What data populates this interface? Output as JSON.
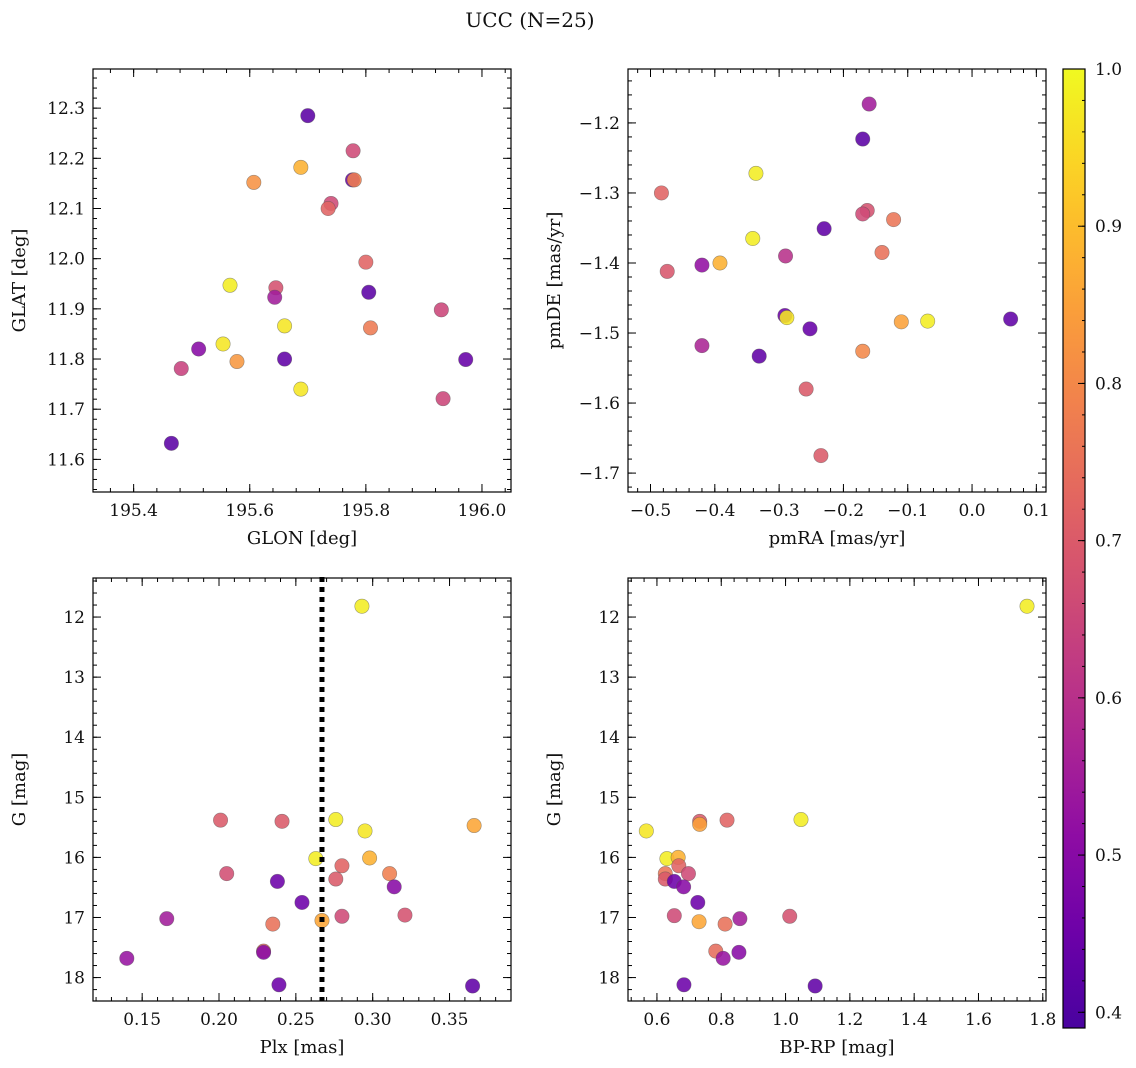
{
  "figure": {
    "title": "UCC (N=25)",
    "colorbar": {
      "range": [
        0.39,
        1.0
      ],
      "ticks": [
        0.4,
        0.5,
        0.6,
        0.7,
        0.8,
        0.9,
        1.0
      ],
      "tick_labels": [
        "0.4",
        "0.5",
        "0.6",
        "0.7",
        "0.8",
        "0.9",
        "1.0"
      ],
      "colormap": "plasma"
    }
  },
  "chart_data": [
    {
      "type": "scatter",
      "xlabel": "GLON [deg]",
      "ylabel": "GLAT [deg]",
      "xlim": [
        195.33,
        196.05
      ],
      "ylim": [
        11.535,
        12.378
      ],
      "xticks": [
        195.4,
        195.6,
        195.8,
        196.0
      ],
      "xtick_labels": [
        "195.4",
        "195.6",
        "195.8",
        "196.0"
      ],
      "yticks": [
        11.6,
        11.7,
        11.8,
        11.9,
        12.0,
        12.1,
        12.2,
        12.3
      ],
      "ytick_labels": [
        "11.6",
        "11.7",
        "11.8",
        "11.9",
        "12.0",
        "12.1",
        "12.2",
        "12.3"
      ],
      "points": [
        {
          "x": 195.7,
          "y": 12.285,
          "c": 0.42
        },
        {
          "x": 195.778,
          "y": 12.215,
          "c": 0.66
        },
        {
          "x": 195.688,
          "y": 12.182,
          "c": 0.88
        },
        {
          "x": 195.777,
          "y": 12.157,
          "c": 0.45
        },
        {
          "x": 195.78,
          "y": 12.157,
          "c": 0.78
        },
        {
          "x": 195.607,
          "y": 12.152,
          "c": 0.82
        },
        {
          "x": 195.74,
          "y": 12.11,
          "c": 0.66
        },
        {
          "x": 195.735,
          "y": 12.1,
          "c": 0.72
        },
        {
          "x": 195.8,
          "y": 11.993,
          "c": 0.72
        },
        {
          "x": 195.566,
          "y": 11.947,
          "c": 0.98
        },
        {
          "x": 195.645,
          "y": 11.942,
          "c": 0.68
        },
        {
          "x": 195.805,
          "y": 11.933,
          "c": 0.42
        },
        {
          "x": 195.643,
          "y": 11.923,
          "c": 0.55
        },
        {
          "x": 195.93,
          "y": 11.898,
          "c": 0.65
        },
        {
          "x": 195.66,
          "y": 11.866,
          "c": 0.97
        },
        {
          "x": 195.808,
          "y": 11.862,
          "c": 0.77
        },
        {
          "x": 195.554,
          "y": 11.83,
          "c": 0.97
        },
        {
          "x": 195.512,
          "y": 11.82,
          "c": 0.5
        },
        {
          "x": 195.66,
          "y": 11.8,
          "c": 0.43
        },
        {
          "x": 195.972,
          "y": 11.799,
          "c": 0.44
        },
        {
          "x": 195.578,
          "y": 11.795,
          "c": 0.83
        },
        {
          "x": 195.482,
          "y": 11.781,
          "c": 0.64
        },
        {
          "x": 195.688,
          "y": 11.74,
          "c": 0.97
        },
        {
          "x": 195.933,
          "y": 11.721,
          "c": 0.65
        },
        {
          "x": 195.465,
          "y": 11.632,
          "c": 0.42
        }
      ]
    },
    {
      "type": "scatter",
      "xlabel": "pmRA [mas/yr]",
      "ylabel": "pmDE [mas/yr]",
      "xlim": [
        -0.535,
        0.115
      ],
      "ylim": [
        -1.727,
        -1.123
      ],
      "xticks": [
        -0.5,
        -0.4,
        -0.3,
        -0.2,
        -0.1,
        0.0,
        0.1
      ],
      "xtick_labels": [
        "−0.5",
        "−0.4",
        "−0.3",
        "−0.2",
        "−0.1",
        "0.0",
        "0.1"
      ],
      "yticks": [
        -1.2,
        -1.3,
        -1.4,
        -1.5,
        -1.6,
        -1.7
      ],
      "ytick_labels": [
        "−1.2",
        "−1.3",
        "−1.4",
        "−1.5",
        "−1.6",
        "−1.7"
      ],
      "points": [
        {
          "x": -0.16,
          "y": -1.173,
          "c": 0.55
        },
        {
          "x": -0.17,
          "y": -1.223,
          "c": 0.42
        },
        {
          "x": -0.336,
          "y": -1.272,
          "c": 0.98
        },
        {
          "x": -0.483,
          "y": -1.3,
          "c": 0.72
        },
        {
          "x": -0.163,
          "y": -1.325,
          "c": 0.68
        },
        {
          "x": -0.17,
          "y": -1.33,
          "c": 0.66
        },
        {
          "x": -0.122,
          "y": -1.338,
          "c": 0.76
        },
        {
          "x": -0.23,
          "y": -1.351,
          "c": 0.43
        },
        {
          "x": -0.341,
          "y": -1.365,
          "c": 0.98
        },
        {
          "x": -0.14,
          "y": -1.385,
          "c": 0.75
        },
        {
          "x": -0.29,
          "y": -1.39,
          "c": 0.6
        },
        {
          "x": -0.392,
          "y": -1.4,
          "c": 0.88
        },
        {
          "x": -0.42,
          "y": -1.403,
          "c": 0.52
        },
        {
          "x": -0.474,
          "y": -1.412,
          "c": 0.69
        },
        {
          "x": -0.291,
          "y": -1.475,
          "c": 0.45
        },
        {
          "x": 0.06,
          "y": -1.48,
          "c": 0.43
        },
        {
          "x": -0.288,
          "y": -1.478,
          "c": 0.97
        },
        {
          "x": -0.069,
          "y": -1.483,
          "c": 0.98
        },
        {
          "x": -0.11,
          "y": -1.484,
          "c": 0.85
        },
        {
          "x": -0.252,
          "y": -1.494,
          "c": 0.44
        },
        {
          "x": -0.42,
          "y": -1.518,
          "c": 0.57
        },
        {
          "x": -0.17,
          "y": -1.526,
          "c": 0.8
        },
        {
          "x": -0.331,
          "y": -1.533,
          "c": 0.43
        },
        {
          "x": -0.258,
          "y": -1.58,
          "c": 0.7
        },
        {
          "x": -0.235,
          "y": -1.675,
          "c": 0.7
        }
      ]
    },
    {
      "type": "scatter",
      "xlabel": "Plx [mas]",
      "ylabel": "G [mag]",
      "xlim": [
        0.118,
        0.39
      ],
      "ylim": [
        18.39,
        11.35
      ],
      "y_inverted": true,
      "xticks": [
        0.15,
        0.2,
        0.25,
        0.3,
        0.35
      ],
      "xtick_labels": [
        "0.15",
        "0.20",
        "0.25",
        "0.30",
        "0.35"
      ],
      "yticks": [
        12,
        13,
        14,
        15,
        16,
        17,
        18
      ],
      "ytick_labels": [
        "12",
        "13",
        "14",
        "15",
        "16",
        "17",
        "18"
      ],
      "vline": {
        "x": 0.267,
        "style": "dotted"
      },
      "points": [
        {
          "x": 0.293,
          "y": 11.82,
          "c": 0.98
        },
        {
          "x": 0.201,
          "y": 15.38,
          "c": 0.7
        },
        {
          "x": 0.241,
          "y": 15.4,
          "c": 0.7
        },
        {
          "x": 0.276,
          "y": 15.37,
          "c": 0.98
        },
        {
          "x": 0.366,
          "y": 15.47,
          "c": 0.86
        },
        {
          "x": 0.295,
          "y": 15.56,
          "c": 0.97
        },
        {
          "x": 0.263,
          "y": 16.02,
          "c": 0.98
        },
        {
          "x": 0.298,
          "y": 16.01,
          "c": 0.88
        },
        {
          "x": 0.28,
          "y": 16.14,
          "c": 0.72
        },
        {
          "x": 0.205,
          "y": 16.27,
          "c": 0.67
        },
        {
          "x": 0.311,
          "y": 16.27,
          "c": 0.78
        },
        {
          "x": 0.276,
          "y": 16.36,
          "c": 0.7
        },
        {
          "x": 0.238,
          "y": 16.4,
          "c": 0.45
        },
        {
          "x": 0.314,
          "y": 16.49,
          "c": 0.5
        },
        {
          "x": 0.254,
          "y": 16.75,
          "c": 0.45
        },
        {
          "x": 0.28,
          "y": 16.98,
          "c": 0.66
        },
        {
          "x": 0.321,
          "y": 16.96,
          "c": 0.68
        },
        {
          "x": 0.166,
          "y": 17.02,
          "c": 0.55
        },
        {
          "x": 0.267,
          "y": 17.05,
          "c": 0.86
        },
        {
          "x": 0.235,
          "y": 17.11,
          "c": 0.75
        },
        {
          "x": 0.229,
          "y": 17.56,
          "c": 0.74
        },
        {
          "x": 0.229,
          "y": 17.58,
          "c": 0.5
        },
        {
          "x": 0.14,
          "y": 17.68,
          "c": 0.53
        },
        {
          "x": 0.239,
          "y": 18.12,
          "c": 0.45
        },
        {
          "x": 0.365,
          "y": 18.14,
          "c": 0.43
        }
      ]
    },
    {
      "type": "scatter",
      "xlabel": "BP-RP [mag]",
      "ylabel": "G [mag]",
      "xlim": [
        0.51,
        1.81
      ],
      "ylim": [
        18.39,
        11.35
      ],
      "y_inverted": true,
      "xticks": [
        0.6,
        0.8,
        1.0,
        1.2,
        1.4,
        1.6,
        1.8
      ],
      "xtick_labels": [
        "0.6",
        "0.8",
        "1.0",
        "1.2",
        "1.4",
        "1.6",
        "1.8"
      ],
      "yticks": [
        12,
        13,
        14,
        15,
        16,
        17,
        18
      ],
      "ytick_labels": [
        "12",
        "13",
        "14",
        "15",
        "16",
        "17",
        "18"
      ],
      "points": [
        {
          "x": 1.751,
          "y": 11.82,
          "c": 0.98
        },
        {
          "x": 0.567,
          "y": 15.56,
          "c": 0.97
        },
        {
          "x": 0.733,
          "y": 15.4,
          "c": 0.7
        },
        {
          "x": 0.733,
          "y": 15.45,
          "c": 0.85
        },
        {
          "x": 0.818,
          "y": 15.38,
          "c": 0.72
        },
        {
          "x": 1.048,
          "y": 15.37,
          "c": 0.98
        },
        {
          "x": 0.631,
          "y": 16.02,
          "c": 0.98
        },
        {
          "x": 0.666,
          "y": 16.0,
          "c": 0.88
        },
        {
          "x": 0.668,
          "y": 16.14,
          "c": 0.72
        },
        {
          "x": 0.626,
          "y": 16.27,
          "c": 0.76
        },
        {
          "x": 0.698,
          "y": 16.27,
          "c": 0.66
        },
        {
          "x": 0.626,
          "y": 16.36,
          "c": 0.7
        },
        {
          "x": 0.654,
          "y": 16.4,
          "c": 0.45
        },
        {
          "x": 0.683,
          "y": 16.49,
          "c": 0.5
        },
        {
          "x": 0.727,
          "y": 16.75,
          "c": 0.45
        },
        {
          "x": 0.654,
          "y": 16.97,
          "c": 0.66
        },
        {
          "x": 1.013,
          "y": 16.98,
          "c": 0.68
        },
        {
          "x": 0.858,
          "y": 17.02,
          "c": 0.55
        },
        {
          "x": 0.731,
          "y": 17.07,
          "c": 0.86
        },
        {
          "x": 0.812,
          "y": 17.11,
          "c": 0.75
        },
        {
          "x": 0.783,
          "y": 17.56,
          "c": 0.74
        },
        {
          "x": 0.855,
          "y": 17.58,
          "c": 0.5
        },
        {
          "x": 0.806,
          "y": 17.68,
          "c": 0.53
        },
        {
          "x": 0.684,
          "y": 18.12,
          "c": 0.45
        },
        {
          "x": 1.092,
          "y": 18.14,
          "c": 0.43
        }
      ]
    }
  ]
}
